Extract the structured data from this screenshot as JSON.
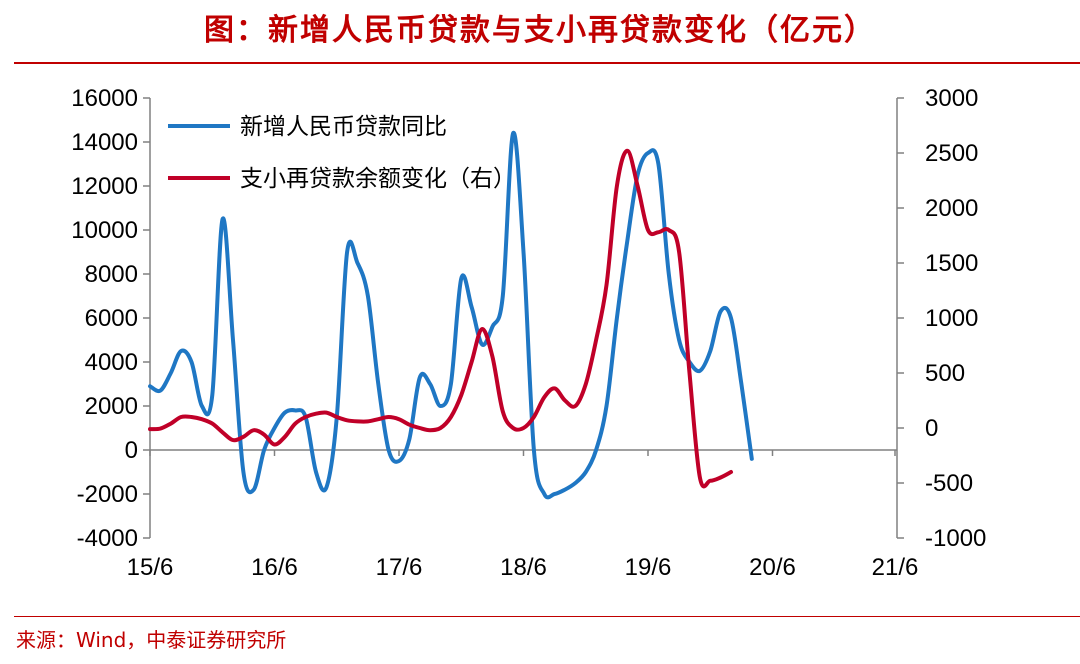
{
  "title": "图：新增人民币贷款与支小再贷款变化（亿元）",
  "source": "来源：Wind，中泰证券研究所",
  "chart_data": {
    "type": "line",
    "title": "图：新增人民币贷款与支小再贷款变化（亿元）",
    "x_ticks": [
      "15/6",
      "16/6",
      "17/6",
      "18/6",
      "19/6",
      "20/6",
      "21/6"
    ],
    "x_range": [
      "2015-06",
      "2021-06"
    ],
    "y_left": {
      "range": [
        -4000,
        16000
      ],
      "ticks": [
        -4000,
        -2000,
        0,
        2000,
        4000,
        6000,
        8000,
        10000,
        12000,
        14000,
        16000
      ]
    },
    "y_right": {
      "range": [
        -1000,
        3000
      ],
      "ticks": [
        -1000,
        -500,
        0,
        500,
        1000,
        1500,
        2000,
        2500,
        3000
      ]
    },
    "legend_position": "top-left",
    "grid": false,
    "series": [
      {
        "name": "新增人民币贷款同比",
        "axis": "left",
        "color": "#1f77c4",
        "points": [
          [
            "2015-06",
            2900
          ],
          [
            "2015-07",
            2700
          ],
          [
            "2015-08",
            3500
          ],
          [
            "2015-09",
            4500
          ],
          [
            "2015-10",
            4000
          ],
          [
            "2015-11",
            2000
          ],
          [
            "2015-12",
            2500
          ],
          [
            "2016-01",
            10500
          ],
          [
            "2016-02",
            5000
          ],
          [
            "2016-03",
            -1000
          ],
          [
            "2016-04",
            -1800
          ],
          [
            "2016-05",
            0
          ],
          [
            "2016-06",
            1000
          ],
          [
            "2016-07",
            1700
          ],
          [
            "2016-08",
            1800
          ],
          [
            "2016-09",
            1500
          ],
          [
            "2016-10",
            -1000
          ],
          [
            "2016-11",
            -1700
          ],
          [
            "2016-12",
            1500
          ],
          [
            "2017-01",
            9000
          ],
          [
            "2017-02",
            8500
          ],
          [
            "2017-03",
            7000
          ],
          [
            "2017-04",
            3000
          ],
          [
            "2017-05",
            0
          ],
          [
            "2017-06",
            -500
          ],
          [
            "2017-07",
            500
          ],
          [
            "2017-08",
            3300
          ],
          [
            "2017-09",
            3000
          ],
          [
            "2017-10",
            2000
          ],
          [
            "2017-11",
            3000
          ],
          [
            "2017-12",
            7800
          ],
          [
            "2018-01",
            6500
          ],
          [
            "2018-02",
            4800
          ],
          [
            "2018-03",
            5600
          ],
          [
            "2018-04",
            7000
          ],
          [
            "2018-05",
            14400
          ],
          [
            "2018-06",
            9000
          ],
          [
            "2018-07",
            0
          ],
          [
            "2018-08",
            -2000
          ],
          [
            "2018-09",
            -2000
          ],
          [
            "2018-10",
            -1800
          ],
          [
            "2018-11",
            -1500
          ],
          [
            "2018-12",
            -1000
          ],
          [
            "2019-01",
            0
          ],
          [
            "2019-02",
            2000
          ],
          [
            "2019-03",
            6000
          ],
          [
            "2019-04",
            9500
          ],
          [
            "2019-05",
            12500
          ],
          [
            "2019-06",
            13500
          ],
          [
            "2019-07",
            13000
          ],
          [
            "2019-08",
            8000
          ],
          [
            "2019-09",
            5000
          ],
          [
            "2019-10",
            4000
          ],
          [
            "2019-11",
            3600
          ],
          [
            "2019-12",
            4500
          ],
          [
            "2020-01",
            6300
          ],
          [
            "2020-02",
            6000
          ],
          [
            "2020-03",
            3000
          ],
          [
            "2020-04",
            -400
          ]
        ]
      },
      {
        "name": "支小再贷款余额变化（右）",
        "axis": "right",
        "color": "#c00028",
        "points": [
          [
            "2015-06",
            -10
          ],
          [
            "2015-07",
            -5
          ],
          [
            "2015-08",
            40
          ],
          [
            "2015-09",
            100
          ],
          [
            "2015-10",
            100
          ],
          [
            "2015-11",
            80
          ],
          [
            "2015-12",
            40
          ],
          [
            "2016-01",
            -40
          ],
          [
            "2016-02",
            -110
          ],
          [
            "2016-03",
            -80
          ],
          [
            "2016-04",
            -20
          ],
          [
            "2016-05",
            -60
          ],
          [
            "2016-06",
            -150
          ],
          [
            "2016-07",
            -80
          ],
          [
            "2016-08",
            40
          ],
          [
            "2016-09",
            100
          ],
          [
            "2016-10",
            130
          ],
          [
            "2016-11",
            140
          ],
          [
            "2016-12",
            100
          ],
          [
            "2017-01",
            70
          ],
          [
            "2017-02",
            60
          ],
          [
            "2017-03",
            60
          ],
          [
            "2017-04",
            80
          ],
          [
            "2017-05",
            100
          ],
          [
            "2017-06",
            80
          ],
          [
            "2017-07",
            30
          ],
          [
            "2017-08",
            0
          ],
          [
            "2017-09",
            -20
          ],
          [
            "2017-10",
            0
          ],
          [
            "2017-11",
            100
          ],
          [
            "2017-12",
            300
          ],
          [
            "2018-01",
            600
          ],
          [
            "2018-02",
            900
          ],
          [
            "2018-03",
            650
          ],
          [
            "2018-04",
            150
          ],
          [
            "2018-05",
            0
          ],
          [
            "2018-06",
            0
          ],
          [
            "2018-07",
            100
          ],
          [
            "2018-08",
            280
          ],
          [
            "2018-09",
            360
          ],
          [
            "2018-10",
            250
          ],
          [
            "2018-11",
            200
          ],
          [
            "2018-12",
            400
          ],
          [
            "2019-01",
            800
          ],
          [
            "2019-02",
            1300
          ],
          [
            "2019-03",
            2200
          ],
          [
            "2019-04",
            2520
          ],
          [
            "2019-05",
            2200
          ],
          [
            "2019-06",
            1800
          ],
          [
            "2019-07",
            1780
          ],
          [
            "2019-08",
            1800
          ],
          [
            "2019-09",
            1600
          ],
          [
            "2019-10",
            500
          ],
          [
            "2019-11",
            -450
          ],
          [
            "2019-12",
            -480
          ],
          [
            "2020-01",
            -450
          ],
          [
            "2020-02",
            -400
          ]
        ]
      }
    ]
  }
}
